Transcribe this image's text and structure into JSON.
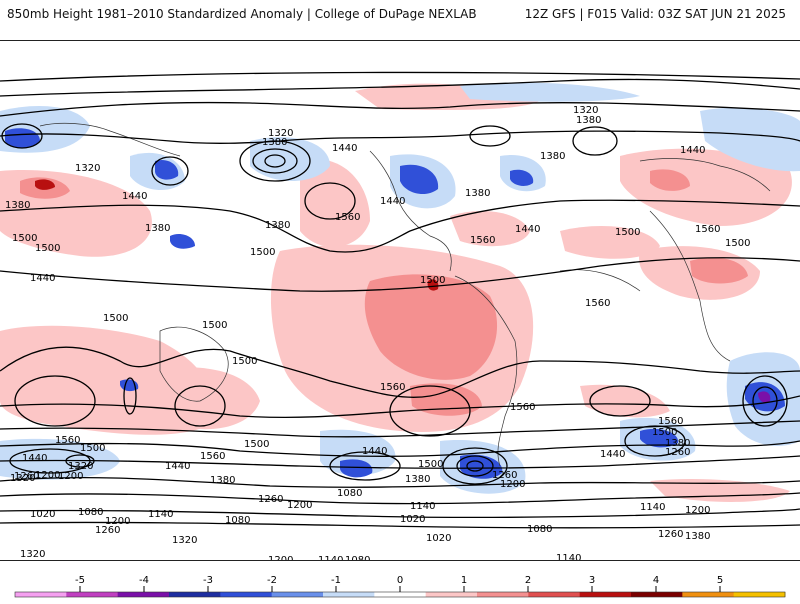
{
  "header": {
    "title_left": "850mb Height 1981–2010 Standardized Anomaly | College of DuPage NEXLAB",
    "title_right": "12Z GFS | F015 Valid: 03Z SAT JUN 21 2025"
  },
  "colorbar": {
    "ticks": [
      "-5",
      "-4",
      "-3",
      "-2",
      "-1",
      "0",
      "1",
      "2",
      "3",
      "4",
      "5"
    ],
    "colors": [
      "#f5a0f0",
      "#c040c0",
      "#7a10a8",
      "#1e2ea0",
      "#3050d8",
      "#6a90ea",
      "#c6dcf7",
      "#ffffff",
      "#fcc6c6",
      "#f49090",
      "#e05050",
      "#b81010",
      "#7a0000",
      "#f09010",
      "#f5c000"
    ]
  },
  "map": {
    "features": [
      "geopotential-height-contours",
      "standardized-anomaly-shading",
      "coastlines",
      "country-borders"
    ],
    "contour_labels": [
      "1320",
      "1380",
      "1380",
      "1320",
      "1440",
      "1440",
      "1380",
      "1320",
      "1380",
      "1440",
      "1380",
      "1380",
      "1500",
      "1500",
      "1560",
      "1500",
      "1380",
      "1440",
      "1500",
      "1440",
      "1500",
      "1560",
      "1500",
      "1560",
      "1500",
      "1440",
      "1500",
      "1500",
      "1560",
      "1500",
      "1560",
      "1560",
      "1560",
      "1500",
      "1560",
      "1500",
      "1440",
      "1560",
      "1500",
      "1440",
      "1440",
      "1380",
      "1260",
      "1200",
      "1380",
      "1260",
      "1320",
      "1200",
      "1260",
      "1200",
      "1440",
      "1380",
      "1320",
      "1260",
      "1200",
      "1080",
      "1140",
      "1020",
      "1080",
      "1140",
      "1200",
      "1260",
      "1320",
      "1020",
      "1080",
      "1200",
      "1140",
      "1380",
      "1320",
      "1080",
      "1200",
      "1140",
      "1080",
      "1020",
      "1260",
      "1380",
      "1200",
      "1140",
      "1320"
    ]
  }
}
